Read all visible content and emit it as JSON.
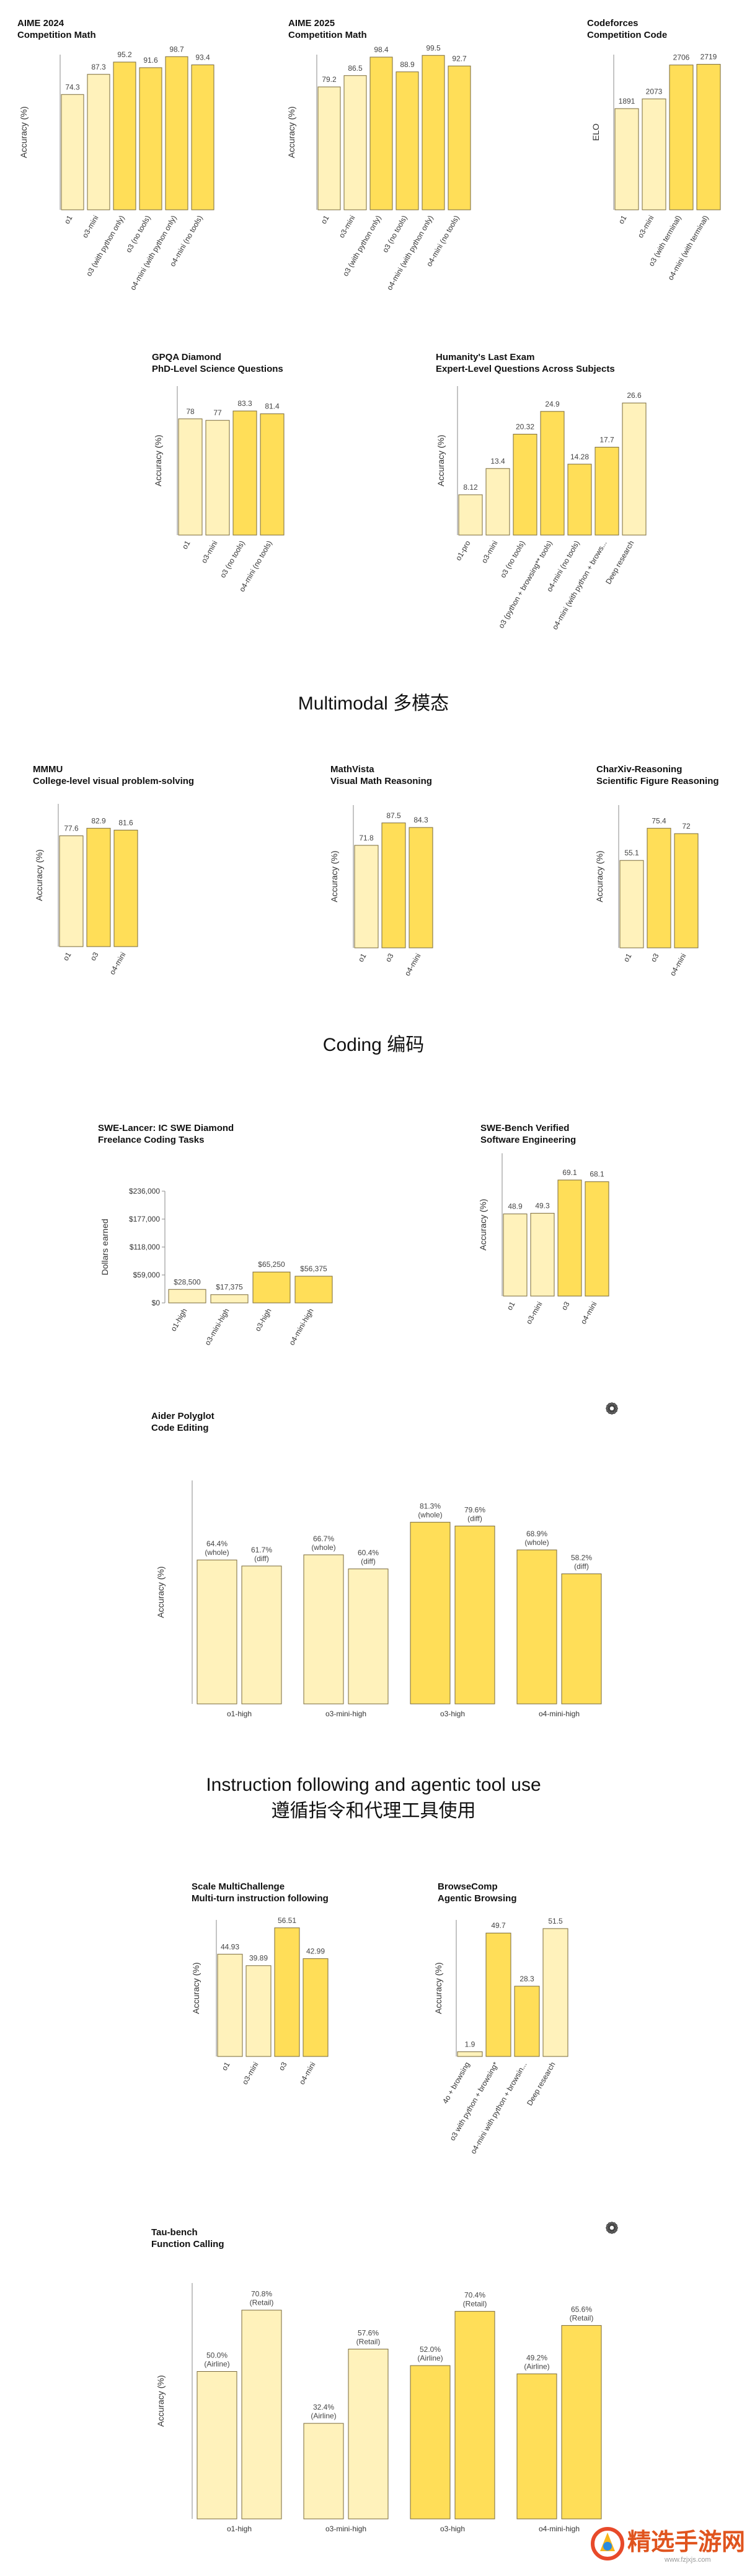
{
  "sections": {
    "multimodal": "Multimodal  多模态",
    "coding": "Coding  编码",
    "instruction_line1": "Instruction following and agentic tool use",
    "instruction_line2": "遵循指令和代理工具使用"
  },
  "watermark": {
    "text": "精选手游网",
    "url": "www.fzjxjs.com"
  },
  "colors": {
    "light": "#fff2bb",
    "dark": "#ffde58",
    "stroke": "#7a6a3a"
  },
  "chart_data": [
    {
      "id": "aime2024",
      "type": "bar",
      "title": "AIME 2024",
      "subtitle": "Competition Math",
      "ylabel": "Accuracy (%)",
      "ylim": [
        0,
        100
      ],
      "categories": [
        "o1",
        "o3-mini",
        "o3 (with python only)",
        "o3 (no tools)",
        "o4-mini (with python only)",
        "o4-mini (no tools)"
      ],
      "values": [
        74.3,
        87.3,
        95.2,
        91.6,
        98.7,
        93.4
      ],
      "labels": [
        "74.3",
        "87.3",
        "95.2",
        "91.6",
        "98.7",
        "93.4"
      ],
      "shades": [
        "light",
        "light",
        "dark",
        "dark",
        "dark",
        "dark"
      ]
    },
    {
      "id": "aime2025",
      "type": "bar",
      "title": "AIME 2025",
      "subtitle": "Competition Math",
      "ylabel": "Accuracy (%)",
      "ylim": [
        0,
        100
      ],
      "categories": [
        "o1",
        "o3-mini",
        "o3 (with python only)",
        "o3 (no tools)",
        "o4-mini (with python only)",
        "o4-mini (no tools)"
      ],
      "values": [
        79.2,
        86.5,
        98.4,
        88.9,
        99.5,
        92.7
      ],
      "labels": [
        "79.2",
        "86.5",
        "98.4",
        "88.9",
        "99.5",
        "92.7"
      ],
      "shades": [
        "light",
        "light",
        "dark",
        "dark",
        "dark",
        "dark"
      ]
    },
    {
      "id": "codeforces",
      "type": "bar",
      "title": "Codeforces",
      "subtitle": "Competition Code",
      "ylabel": "ELO",
      "ylim": [
        0,
        2900
      ],
      "categories": [
        "o1",
        "o3-mini",
        "o3 (with terminal)",
        "o4-mini (with terminal)"
      ],
      "values": [
        1891,
        2073,
        2706,
        2719
      ],
      "labels": [
        "1891",
        "2073",
        "2706",
        "2719"
      ],
      "shades": [
        "light",
        "light",
        "dark",
        "dark"
      ]
    },
    {
      "id": "gpqa",
      "type": "bar",
      "title": "GPQA Diamond",
      "subtitle": "PhD-Level Science Questions",
      "ylabel": "Accuracy (%)",
      "ylim": [
        0,
        100
      ],
      "categories": [
        "o1",
        "o3-mini",
        "o3 (no tools)",
        "o4-mini (no tools)"
      ],
      "values": [
        78,
        77,
        83.3,
        81.4
      ],
      "labels": [
        "78",
        "77",
        "83.3",
        "81.4"
      ],
      "shades": [
        "light",
        "light",
        "dark",
        "dark"
      ]
    },
    {
      "id": "hle",
      "type": "bar",
      "title": "Humanity's Last Exam",
      "subtitle": "Expert-Level Questions Across Subjects",
      "ylabel": "Accuracy (%)",
      "ylim": [
        0,
        30
      ],
      "categories": [
        "o1-pro",
        "o3-mini",
        "o3 (no tools)",
        "o3 (python + browsing** tools)",
        "o4-mini (no tools)",
        "o4-mini (with python + brows...",
        "Deep research"
      ],
      "values": [
        8.12,
        13.4,
        20.32,
        24.9,
        14.28,
        17.7,
        26.6
      ],
      "labels": [
        "8.12",
        "13.4",
        "20.32",
        "24.9",
        "14.28",
        "17.7",
        "26.6"
      ],
      "shades": [
        "light",
        "light",
        "dark",
        "dark",
        "dark",
        "dark",
        "light"
      ]
    },
    {
      "id": "mmmu",
      "type": "bar",
      "title": "MMMU",
      "subtitle": "College-level visual problem-solving",
      "ylabel": "Accuracy (%)",
      "ylim": [
        0,
        100
      ],
      "categories": [
        "o1",
        "o3",
        "o4-mini"
      ],
      "values": [
        77.6,
        82.9,
        81.6
      ],
      "labels": [
        "77.6",
        "82.9",
        "81.6"
      ],
      "shades": [
        "light",
        "dark",
        "dark"
      ]
    },
    {
      "id": "mathvista",
      "type": "bar",
      "title": "MathVista",
      "subtitle": "Visual Math Reasoning",
      "ylabel": "Accuracy (%)",
      "ylim": [
        0,
        100
      ],
      "categories": [
        "o1",
        "o3",
        "o4-mini"
      ],
      "values": [
        71.8,
        87.5,
        84.3
      ],
      "labels": [
        "71.8",
        "87.5",
        "84.3"
      ],
      "shades": [
        "light",
        "dark",
        "dark"
      ]
    },
    {
      "id": "charxiv",
      "type": "bar",
      "title": "CharXiv-Reasoning",
      "subtitle": "Scientific Figure Reasoning",
      "ylabel": "Accuracy (%)",
      "ylim": [
        0,
        90
      ],
      "categories": [
        "o1",
        "o3",
        "o4-mini"
      ],
      "values": [
        55.1,
        75.4,
        72
      ],
      "labels": [
        "55.1",
        "75.4",
        "72"
      ],
      "shades": [
        "light",
        "dark",
        "dark"
      ]
    },
    {
      "id": "swelancer",
      "type": "bar",
      "title": "SWE-Lancer: IC SWE Diamond",
      "subtitle": "Freelance Coding Tasks",
      "ylabel": "Dollars earned",
      "ylim": [
        0,
        236000
      ],
      "yticks": [
        0,
        59000,
        118000,
        177000,
        236000
      ],
      "ytick_labels": [
        "$0",
        "$59,000",
        "$118,000",
        "$177,000",
        "$236,000"
      ],
      "categories": [
        "o1-high",
        "o3-mini-high",
        "o3-high",
        "o4-mini-high"
      ],
      "values": [
        28500,
        17375,
        65250,
        56375
      ],
      "labels": [
        "$28,500",
        "$17,375",
        "$65,250",
        "$56,375"
      ],
      "shades": [
        "light",
        "light",
        "dark",
        "dark"
      ]
    },
    {
      "id": "swebench",
      "type": "bar",
      "title": "SWE-Bench Verified",
      "subtitle": "Software Engineering",
      "ylabel": "Accuracy (%)",
      "ylim": [
        0,
        85
      ],
      "categories": [
        "o1",
        "o3-mini",
        "o3",
        "o4-mini"
      ],
      "values": [
        48.9,
        49.3,
        69.1,
        68.1
      ],
      "labels": [
        "48.9",
        "49.3",
        "69.1",
        "68.1"
      ],
      "shades": [
        "light",
        "light",
        "dark",
        "dark"
      ]
    },
    {
      "id": "aider",
      "type": "grouped-bar",
      "title": "Aider Polyglot",
      "subtitle": "Code Editing",
      "ylabel": "Accuracy (%)",
      "ylim": [
        0,
        100
      ],
      "categories": [
        "o1-high",
        "o3-mini-high",
        "o3-high",
        "o4-mini-high"
      ],
      "groups": [
        {
          "values": [
            64.4,
            61.7
          ],
          "labels": [
            [
              "64.4%",
              "(whole)"
            ],
            [
              "61.7%",
              "(diff)"
            ]
          ],
          "shade": "light"
        },
        {
          "values": [
            66.7,
            60.4
          ],
          "labels": [
            [
              "66.7%",
              "(whole)"
            ],
            [
              "60.4%",
              "(diff)"
            ]
          ],
          "shade": "light"
        },
        {
          "values": [
            81.3,
            79.6
          ],
          "labels": [
            [
              "81.3%",
              "(whole)"
            ],
            [
              "79.6%",
              "(diff)"
            ]
          ],
          "shade": "dark"
        },
        {
          "values": [
            68.9,
            58.2
          ],
          "labels": [
            [
              "68.9%",
              "(whole)"
            ],
            [
              "58.2%",
              "(diff)"
            ]
          ],
          "shade": "dark"
        }
      ]
    },
    {
      "id": "multichallenge",
      "type": "bar",
      "title": "Scale MultiChallenge",
      "subtitle": "Multi-turn instruction following",
      "ylabel": "Accuracy (%)",
      "ylim": [
        0,
        60
      ],
      "categories": [
        "o1",
        "o3-mini",
        "o3",
        "o4-mini"
      ],
      "values": [
        44.93,
        39.89,
        56.51,
        42.99
      ],
      "labels": [
        "44.93",
        "39.89",
        "56.51",
        "42.99"
      ],
      "shades": [
        "light",
        "light",
        "dark",
        "dark"
      ]
    },
    {
      "id": "browsecomp",
      "type": "bar",
      "title": "BrowseComp",
      "subtitle": "Agentic Browsing",
      "ylabel": "Accuracy (%)",
      "ylim": [
        0,
        55
      ],
      "categories": [
        "4o + browsing",
        "o3 with python + browsing*",
        "o4-mini with python + browsin...",
        "Deep research"
      ],
      "values": [
        1.9,
        49.7,
        28.3,
        51.5
      ],
      "labels": [
        "1.9",
        "49.7",
        "28.3",
        "51.5"
      ],
      "shades": [
        "light",
        "dark",
        "dark",
        "light"
      ]
    },
    {
      "id": "taubench",
      "type": "grouped-bar",
      "title": "Tau-bench",
      "subtitle": "Function Calling",
      "ylabel": "Accuracy (%)",
      "ylim": [
        0,
        80
      ],
      "categories": [
        "o1-high",
        "o3-mini-high",
        "o3-high",
        "o4-mini-high"
      ],
      "groups": [
        {
          "values": [
            50.0,
            70.8
          ],
          "labels": [
            [
              "50.0%",
              "(Airline)"
            ],
            [
              "70.8%",
              "(Retail)"
            ]
          ],
          "shade": "light"
        },
        {
          "values": [
            32.4,
            57.6
          ],
          "labels": [
            [
              "32.4%",
              "(Airline)"
            ],
            [
              "57.6%",
              "(Retail)"
            ]
          ],
          "shade": "light"
        },
        {
          "values": [
            52.0,
            70.4
          ],
          "labels": [
            [
              "52.0%",
              "(Airline)"
            ],
            [
              "70.4%",
              "(Retail)"
            ]
          ],
          "shade": "dark"
        },
        {
          "values": [
            49.2,
            65.6
          ],
          "labels": [
            [
              "49.2%",
              "(Airline)"
            ],
            [
              "65.6%",
              "(Retail)"
            ]
          ],
          "shade": "dark"
        }
      ]
    }
  ]
}
